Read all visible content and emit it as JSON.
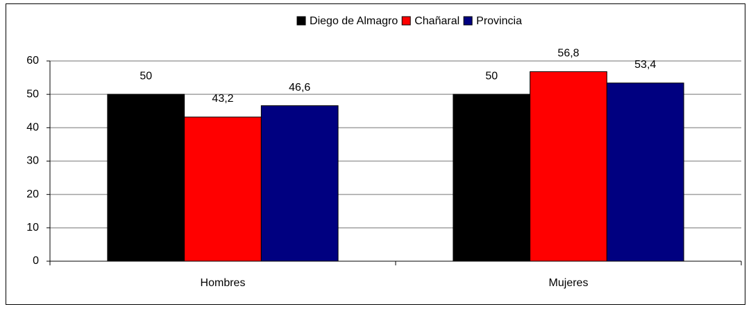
{
  "chart_data": {
    "type": "bar",
    "categories": [
      "Hombres",
      "Mujeres"
    ],
    "series": [
      {
        "name": "Diego de Almagro",
        "color": "#000000",
        "values": [
          50,
          50
        ],
        "value_labels": [
          "50",
          "50"
        ]
      },
      {
        "name": "Chañaral",
        "color": "#ff0000",
        "values": [
          43.2,
          56.8
        ],
        "value_labels": [
          "43,2",
          "56,8"
        ]
      },
      {
        "name": "Provincia",
        "color": "#000080",
        "values": [
          46.6,
          53.4
        ],
        "value_labels": [
          "46,6",
          "53,4"
        ]
      }
    ],
    "ylim": [
      0,
      60
    ],
    "yticks": [
      0,
      10,
      20,
      30,
      40,
      50,
      60
    ],
    "grid": true,
    "legend": "top"
  }
}
